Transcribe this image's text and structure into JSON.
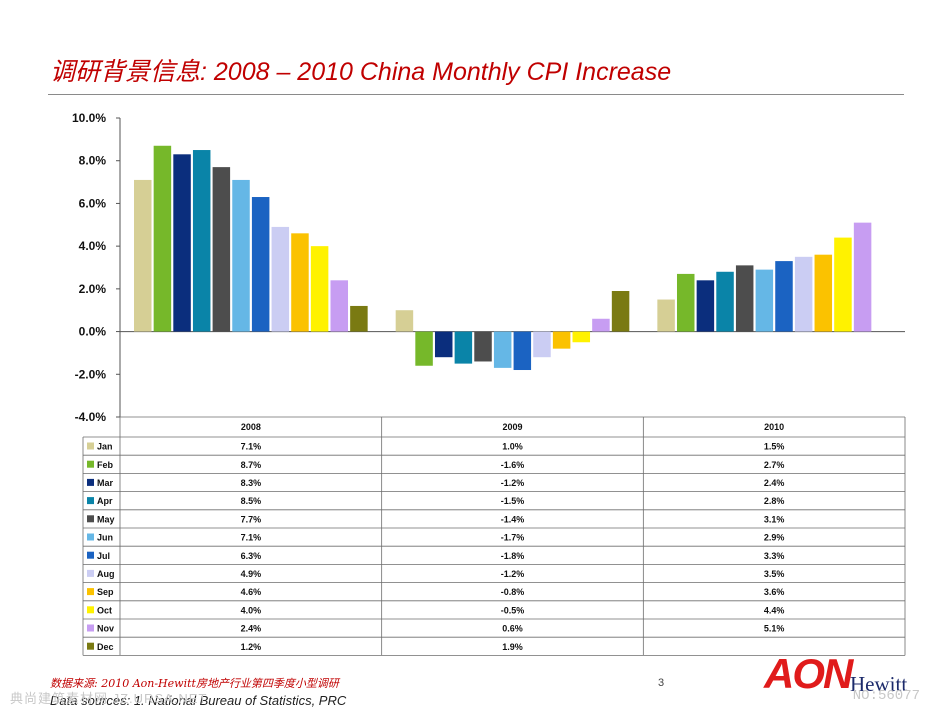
{
  "slide": {
    "title": "调研背景信息: 2008 – 2010 China Monthly CPI Increase",
    "source_cn": "数据来源: 2010 Aon-Hewitt房地产行业第四季度小型调研",
    "source_en": "Data sources:    1. National Bureau of Statistics, PRC",
    "page_number": "3",
    "logo": {
      "primary": "AON",
      "secondary": "Hewitt"
    },
    "watermark_left": "典尚建筑素材网  JZ.URSA.NET",
    "watermark_right": "NO:56077"
  },
  "chart_data": {
    "type": "bar",
    "categories": [
      "2008",
      "2009",
      "2010"
    ],
    "series": [
      {
        "name": "Jan",
        "color": "#d6cf95",
        "values": [
          7.1,
          1.0,
          1.5
        ]
      },
      {
        "name": "Feb",
        "color": "#76b82a",
        "values": [
          8.7,
          -1.6,
          2.7
        ]
      },
      {
        "name": "Mar",
        "color": "#0b2e7d",
        "values": [
          8.3,
          -1.2,
          2.4
        ]
      },
      {
        "name": "Apr",
        "color": "#0a84a8",
        "values": [
          8.5,
          -1.5,
          2.8
        ]
      },
      {
        "name": "May",
        "color": "#4d4d4d",
        "values": [
          7.7,
          -1.4,
          3.1
        ]
      },
      {
        "name": "Jun",
        "color": "#65b7e6",
        "values": [
          7.1,
          -1.7,
          2.9
        ]
      },
      {
        "name": "Jul",
        "color": "#1b63c2",
        "values": [
          6.3,
          -1.8,
          3.3
        ]
      },
      {
        "name": "Aug",
        "color": "#cbcdf3",
        "values": [
          4.9,
          -1.2,
          3.5
        ]
      },
      {
        "name": "Sep",
        "color": "#fbc200",
        "values": [
          4.6,
          -0.8,
          3.6
        ]
      },
      {
        "name": "Oct",
        "color": "#fff200",
        "values": [
          4.0,
          -0.5,
          4.4
        ]
      },
      {
        "name": "Nov",
        "color": "#c79df2",
        "values": [
          2.4,
          0.6,
          5.1
        ]
      },
      {
        "name": "Dec",
        "color": "#7a7a12",
        "values": [
          1.2,
          1.9,
          null
        ]
      }
    ],
    "table_values": [
      [
        "7.1%",
        "1.0%",
        "1.5%"
      ],
      [
        "8.7%",
        "-1.6%",
        "2.7%"
      ],
      [
        "8.3%",
        "-1.2%",
        "2.4%"
      ],
      [
        "8.5%",
        "-1.5%",
        "2.8%"
      ],
      [
        "7.7%",
        "-1.4%",
        "3.1%"
      ],
      [
        "7.1%",
        "-1.7%",
        "2.9%"
      ],
      [
        "6.3%",
        "-1.8%",
        "3.3%"
      ],
      [
        "4.9%",
        "-1.2%",
        "3.5%"
      ],
      [
        "4.6%",
        "-0.8%",
        "3.6%"
      ],
      [
        "4.0%",
        "-0.5%",
        "4.4%"
      ],
      [
        "2.4%",
        "0.6%",
        "5.1%"
      ],
      [
        "1.2%",
        "1.9%",
        ""
      ]
    ],
    "ylim": [
      -4.0,
      10.0
    ],
    "yticks": [
      10.0,
      8.0,
      6.0,
      4.0,
      2.0,
      0.0,
      -2.0,
      -4.0
    ],
    "ytick_labels": [
      "10.0%",
      "8.0%",
      "6.0%",
      "4.0%",
      "2.0%",
      "0.0%",
      "-2.0%",
      "-4.0%"
    ],
    "grid": false,
    "legend": "data-table-below"
  }
}
